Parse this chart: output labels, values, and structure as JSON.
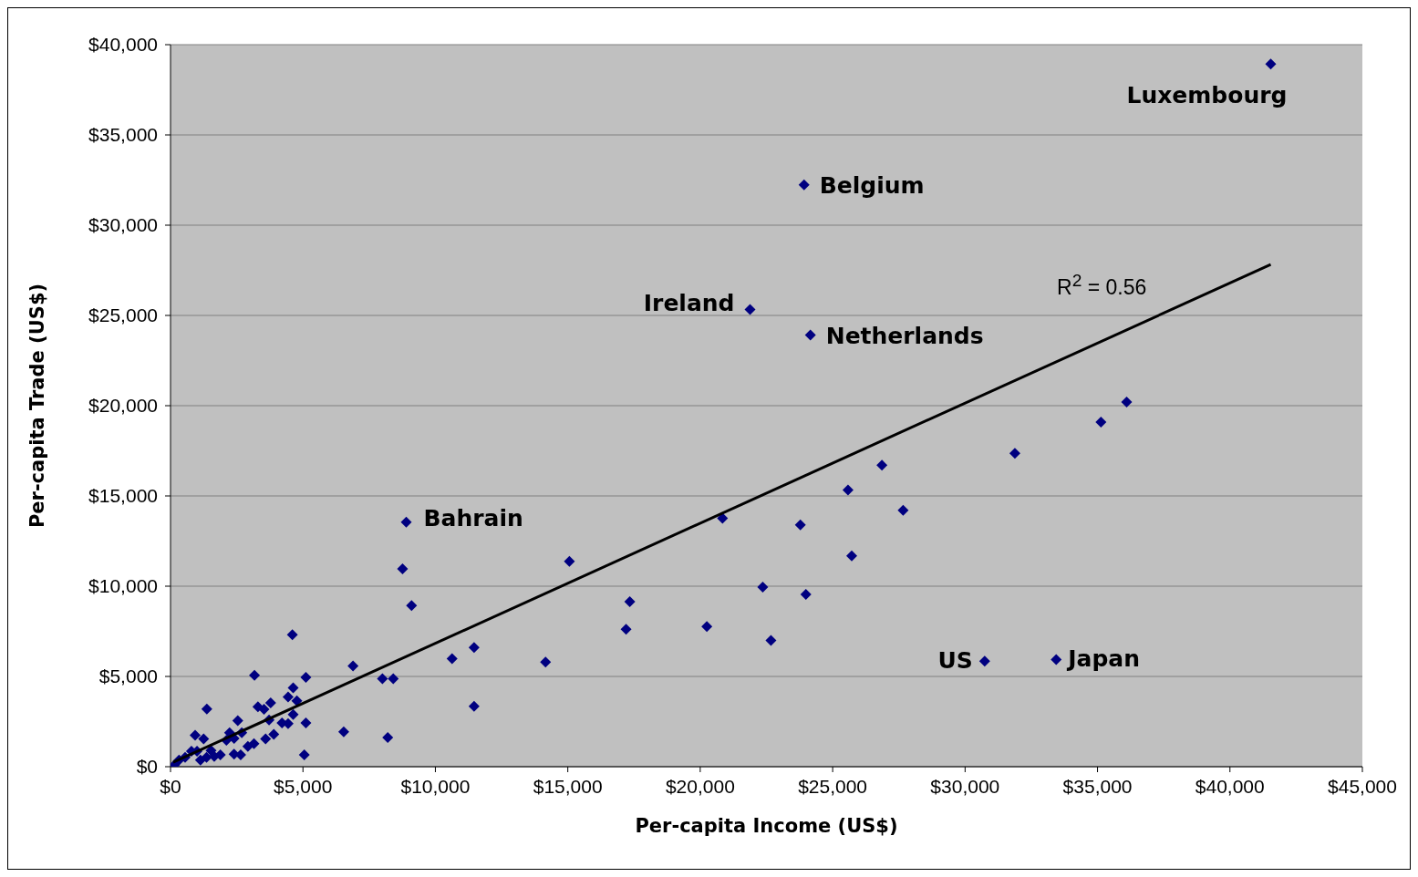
{
  "chart_data": {
    "type": "scatter",
    "xlabel": "Per-capita Income (US$)",
    "ylabel": "Per-capita Trade (US$)",
    "xlim": [
      0,
      45000
    ],
    "ylim": [
      0,
      40000
    ],
    "xticks": [
      {
        "value": 0,
        "label": "$0"
      },
      {
        "value": 5000,
        "label": "$5,000"
      },
      {
        "value": 10000,
        "label": "$10,000"
      },
      {
        "value": 15000,
        "label": "$15,000"
      },
      {
        "value": 20000,
        "label": "$20,000"
      },
      {
        "value": 25000,
        "label": "$25,000"
      },
      {
        "value": 30000,
        "label": "$30,000"
      },
      {
        "value": 35000,
        "label": "$35,000"
      },
      {
        "value": 40000,
        "label": "$40,000"
      },
      {
        "value": 45000,
        "label": "$45,000"
      }
    ],
    "yticks": [
      {
        "value": 0,
        "label": "$0"
      },
      {
        "value": 5000,
        "label": "$5,000"
      },
      {
        "value": 10000,
        "label": "$10,000"
      },
      {
        "value": 15000,
        "label": "$15,000"
      },
      {
        "value": 20000,
        "label": "$20,000"
      },
      {
        "value": 25000,
        "label": "$25,000"
      },
      {
        "value": 30000,
        "label": "$30,000"
      },
      {
        "value": 35000,
        "label": "$35,000"
      },
      {
        "value": 40000,
        "label": "$40,000"
      }
    ],
    "grid": "y",
    "marker": "diamond",
    "legend": false,
    "series": [
      {
        "type": "scatter",
        "color": "#000080",
        "x": [
          41540,
          23920,
          21880,
          24160,
          8900,
          30740,
          33440,
          36100,
          35130,
          31880,
          26860,
          27660,
          25580,
          25720,
          23780,
          20840,
          22360,
          23990,
          22670,
          20250,
          17340,
          17200,
          15060,
          14160,
          11460,
          11460,
          10630,
          8760,
          9100,
          8410,
          8000,
          8200,
          6890,
          6540,
          4600,
          3170,
          5110,
          1370,
          4630,
          4440,
          4770,
          3780,
          3300,
          3530,
          4630,
          3720,
          5110,
          4210,
          4440,
          2540,
          5050,
          3900,
          3590,
          3150,
          2920,
          930,
          1250,
          2230,
          2400,
          2690,
          2110,
          2400,
          2650,
          1880,
          1650,
          1360,
          1130,
          790,
          550,
          320,
          150,
          1000,
          1530
        ],
        "values": [
          38930,
          32230,
          25330,
          23910,
          13550,
          5840,
          5940,
          20200,
          19090,
          17360,
          16700,
          14210,
          15330,
          11680,
          13400,
          13760,
          9950,
          9540,
          7000,
          7770,
          9140,
          7610,
          11370,
          5790,
          6600,
          3350,
          5990,
          10960,
          8930,
          4870,
          4870,
          1620,
          5580,
          1930,
          7310,
          5060,
          4950,
          3200,
          4370,
          3860,
          3650,
          3540,
          3320,
          3180,
          2890,
          2590,
          2420,
          2420,
          2390,
          2550,
          660,
          1790,
          1540,
          1280,
          1120,
          1740,
          1540,
          1880,
          1570,
          1880,
          1460,
          700,
          660,
          660,
          570,
          520,
          360,
          860,
          520,
          360,
          100,
          860,
          900
        ]
      },
      {
        "type": "line",
        "color": "#000000",
        "marker": "none",
        "x": [
          100,
          41540
        ],
        "values": [
          250,
          27820
        ]
      }
    ],
    "annotations": [
      {
        "text": "Luxembourg",
        "x": 41540,
        "y": 38930
      },
      {
        "text": "Belgium",
        "x": 23920,
        "y": 32230
      },
      {
        "text": "Ireland",
        "x": 21880,
        "y": 25330
      },
      {
        "text": "Netherlands",
        "x": 24160,
        "y": 23910
      },
      {
        "text": "Bahrain",
        "x": 8900,
        "y": 13550
      },
      {
        "text": "US",
        "x": 30740,
        "y": 5840
      },
      {
        "text": "Japan",
        "x": 33440,
        "y": 5940
      },
      "R$^{2}$ = 0.56"
    ]
  }
}
